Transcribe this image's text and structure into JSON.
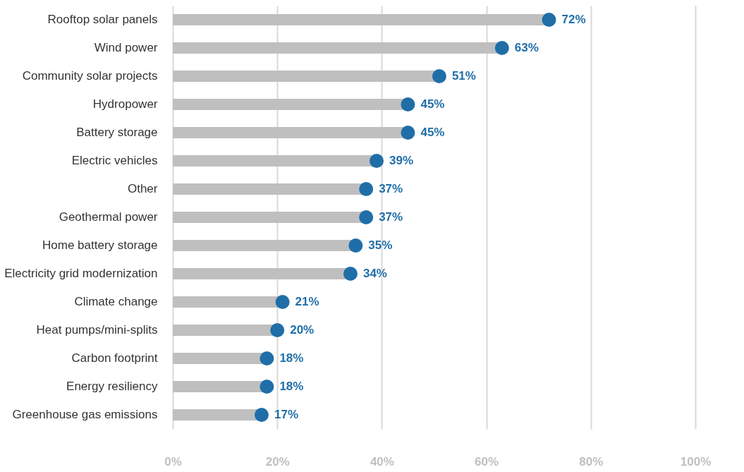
{
  "chart_data": {
    "type": "lollipop",
    "orientation": "horizontal",
    "categories": [
      "Rooftop solar panels",
      "Wind power",
      "Community solar projects",
      "Hydropower",
      "Battery storage",
      "Electric vehicles",
      "Other",
      "Geothermal power",
      "Home battery storage",
      "Electricity grid modernization",
      "Climate change",
      "Heat pumps/mini-splits",
      "Carbon footprint",
      "Energy resiliency",
      "Greenhouse gas emissions"
    ],
    "series": [
      {
        "color": "#1f6ea8",
        "values": [
          72,
          63,
          51,
          45,
          45,
          39,
          37,
          37,
          35,
          34,
          21,
          20,
          18,
          18,
          17
        ]
      }
    ],
    "value_labels": [
      "72%",
      "63%",
      "51%",
      "45%",
      "45%",
      "39%",
      "37%",
      "37%",
      "35%",
      "34%",
      "21%",
      "20%",
      "18%",
      "18%",
      "17%"
    ],
    "xlim": [
      0,
      100
    ],
    "xticks": [
      {
        "value": 0,
        "label": "0%"
      },
      {
        "value": 20,
        "label": "20%"
      },
      {
        "value": 40,
        "label": "40%"
      },
      {
        "value": 60,
        "label": "60%"
      },
      {
        "value": 80,
        "label": "80%"
      },
      {
        "value": 100,
        "label": "100%"
      }
    ],
    "grid": "x"
  }
}
